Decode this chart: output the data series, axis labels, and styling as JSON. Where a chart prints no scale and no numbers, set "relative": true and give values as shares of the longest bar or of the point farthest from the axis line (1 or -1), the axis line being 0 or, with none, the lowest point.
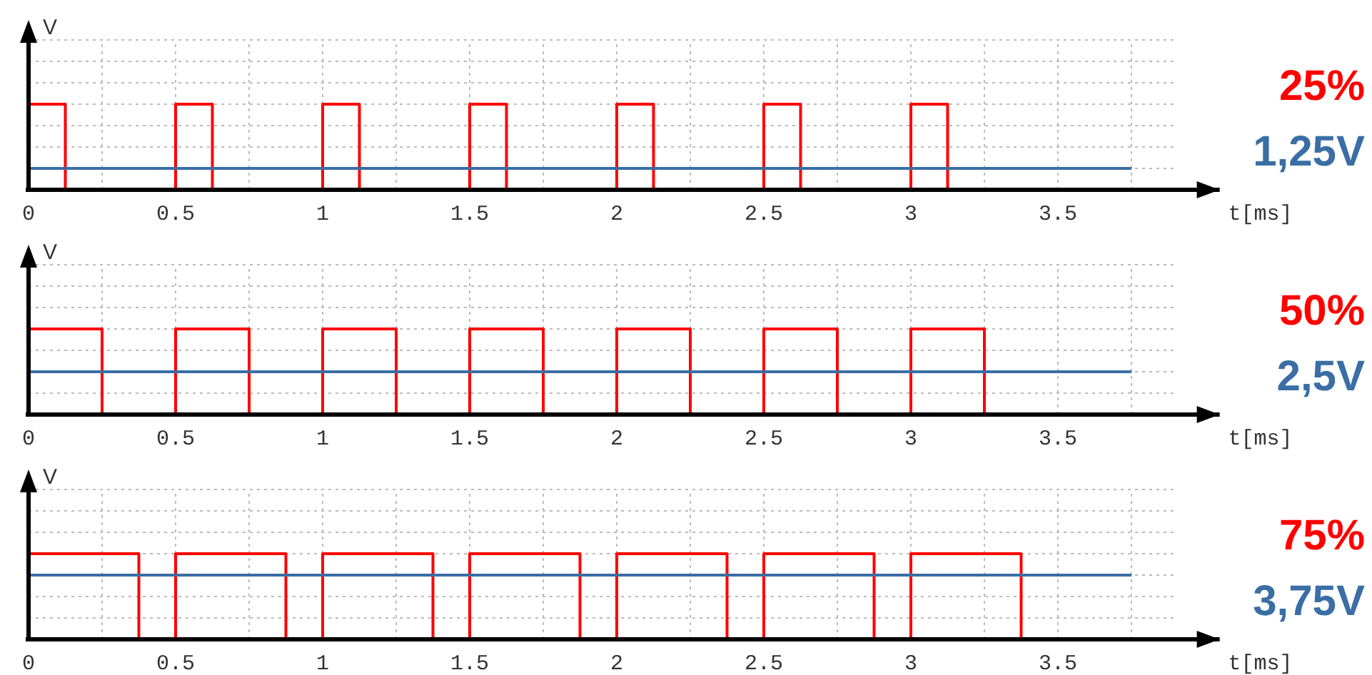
{
  "chart_data": [
    {
      "type": "step",
      "ylabel": "V",
      "xlabel": "t[ms]",
      "relative": true,
      "grid": true,
      "xlim": [
        0,
        4.05
      ],
      "xticks": [
        0,
        {
          "value": 0.25,
          "label": null
        },
        0.5,
        {
          "value": 0.75,
          "label": null
        },
        1,
        {
          "value": 1.25,
          "label": null
        },
        1.5,
        {
          "value": 1.75,
          "label": null
        },
        2,
        {
          "value": 2.25,
          "label": null
        },
        2.5,
        {
          "value": 2.75,
          "label": null
        },
        3,
        {
          "value": 3.25,
          "label": null
        },
        3.5,
        {
          "value": 3.75,
          "label": null
        }
      ],
      "series": [
        {
          "color": "#ff0000",
          "x": [
            0,
            0.125,
            0.5,
            0.625,
            1,
            1.125,
            1.5,
            1.625,
            2,
            2.125,
            2.5,
            2.625,
            3,
            3.125,
            3.5
          ],
          "values": [
            1,
            0,
            1,
            0,
            1,
            0,
            1,
            0,
            1,
            0,
            1,
            0,
            1,
            0,
            0
          ]
        },
        {
          "type": "line",
          "color": "#3a6ea5",
          "x": [
            0,
            3.75
          ],
          "values": [
            0.25,
            0.25
          ]
        }
      ],
      "annotations": [
        "25%",
        "1,25V"
      ]
    },
    {
      "type": "step",
      "ylabel": "V",
      "xlabel": "t[ms]",
      "relative": true,
      "grid": true,
      "xlim": [
        0,
        4.05
      ],
      "xticks": [
        0,
        {
          "value": 0.25,
          "label": null
        },
        0.5,
        {
          "value": 0.75,
          "label": null
        },
        1,
        {
          "value": 1.25,
          "label": null
        },
        1.5,
        {
          "value": 1.75,
          "label": null
        },
        2,
        {
          "value": 2.25,
          "label": null
        },
        2.5,
        {
          "value": 2.75,
          "label": null
        },
        3,
        {
          "value": 3.25,
          "label": null
        },
        3.5,
        {
          "value": 3.75,
          "label": null
        }
      ],
      "series": [
        {
          "color": "#ff0000",
          "x": [
            0,
            0.25,
            0.5,
            0.75,
            1,
            1.25,
            1.5,
            1.75,
            2,
            2.25,
            2.5,
            2.75,
            3,
            3.25,
            3.5
          ],
          "values": [
            1,
            0,
            1,
            0,
            1,
            0,
            1,
            0,
            1,
            0,
            1,
            0,
            1,
            0,
            0
          ]
        },
        {
          "type": "line",
          "color": "#3a6ea5",
          "x": [
            0,
            3.75
          ],
          "values": [
            0.5,
            0.5
          ]
        }
      ],
      "annotations": [
        "50%",
        "2,5V"
      ]
    },
    {
      "type": "step",
      "ylabel": "V",
      "xlabel": "t[ms]",
      "relative": true,
      "grid": true,
      "xlim": [
        0,
        4.05
      ],
      "xticks": [
        0,
        {
          "value": 0.25,
          "label": null
        },
        0.5,
        {
          "value": 0.75,
          "label": null
        },
        1,
        {
          "value": 1.25,
          "label": null
        },
        1.5,
        {
          "value": 1.75,
          "label": null
        },
        2,
        {
          "value": 2.25,
          "label": null
        },
        2.5,
        {
          "value": 2.75,
          "label": null
        },
        3,
        {
          "value": 3.25,
          "label": null
        },
        3.5,
        {
          "value": 3.75,
          "label": null
        }
      ],
      "series": [
        {
          "color": "#ff0000",
          "x": [
            0,
            0.375,
            0.5,
            0.875,
            1,
            1.375,
            1.5,
            1.875,
            2,
            2.375,
            2.5,
            2.875,
            3,
            3.375,
            3.5
          ],
          "values": [
            1,
            0,
            1,
            0,
            1,
            0,
            1,
            0,
            1,
            0,
            1,
            0,
            1,
            0,
            0
          ]
        },
        {
          "type": "line",
          "color": "#3a6ea5",
          "x": [
            0,
            3.75
          ],
          "values": [
            0.75,
            0.75
          ]
        }
      ],
      "annotations": [
        "75%",
        "3,75V"
      ]
    }
  ]
}
